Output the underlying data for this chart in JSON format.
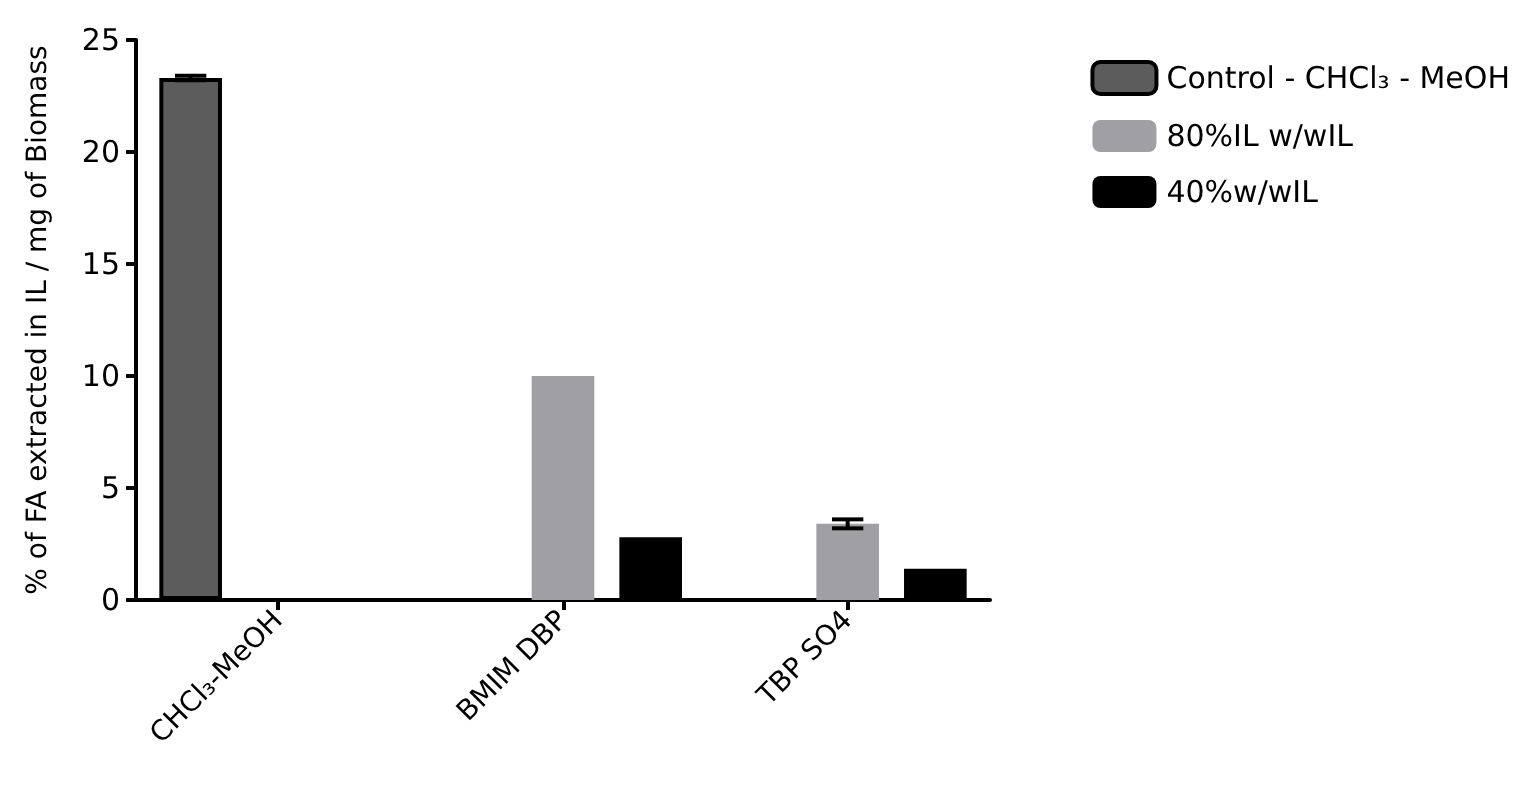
{
  "chart_data": {
    "type": "bar",
    "ylabel": "% of FA extracted in IL / mg of Biomass",
    "categories": [
      "CHCl₃-MeOH",
      "BMIM DBP",
      "TBP SO4"
    ],
    "series": [
      {
        "name": "Control - CHCl₃ - MeOH",
        "color": "#5c5c5c",
        "values": [
          23.3,
          null,
          null
        ],
        "errors": [
          0.1,
          null,
          null
        ]
      },
      {
        "name": "80%IL w/wIL",
        "color": "#a0a0a4",
        "values": [
          null,
          10,
          3.4
        ],
        "errors": [
          null,
          null,
          0.2
        ]
      },
      {
        "name": "40%w/wIL",
        "color": "#000000",
        "values": [
          null,
          2.8,
          1.4
        ]
      }
    ],
    "ylim": [
      0,
      25
    ],
    "yticks": [
      0,
      5,
      10,
      15,
      20,
      25
    ],
    "grid": false,
    "legend": "top right"
  }
}
